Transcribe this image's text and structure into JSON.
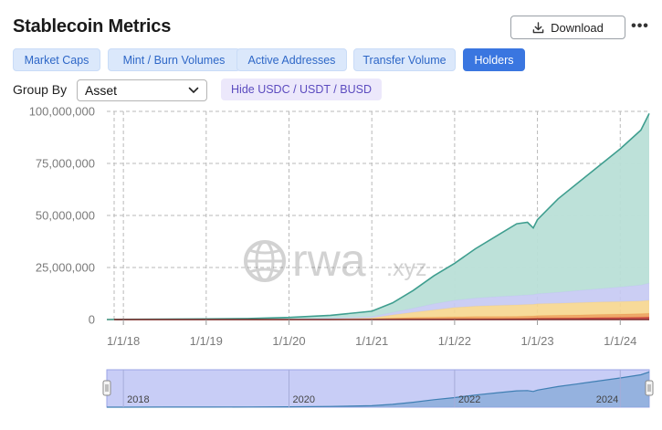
{
  "header": {
    "title": "Stablecoin Metrics",
    "download_label": "Download",
    "more_label": "•••"
  },
  "tabs": [
    {
      "label": "Market Caps",
      "active": false
    },
    {
      "label": "Mint / Burn Volumes",
      "active": false
    },
    {
      "label": "Active Addresses",
      "active": false
    },
    {
      "label": "Transfer Volume",
      "active": false
    },
    {
      "label": "Holders",
      "active": true
    }
  ],
  "controls": {
    "group_by_label": "Group By",
    "group_by_value": "Asset",
    "hide_button_label": "Hide USDC / USDT / BUSD"
  },
  "watermark": {
    "text_main": "rwa",
    "text_suffix": ".xyz"
  },
  "colors": {
    "teal": "#3f9e8f",
    "teal_fill": "#b9dfd7",
    "lavender": "#c5c9f3",
    "yellow": "#f6d68e",
    "orange": "#eca05a",
    "red": "#c9413b",
    "navigator_fill": "#c8cdf6",
    "navigator_line": "#3f7fb3"
  },
  "chart_data": {
    "type": "area",
    "title": "Holders",
    "stacked": true,
    "y_tick_labels": [
      "0",
      "25,000,000",
      "50,000,000",
      "75,000,000",
      "100,000,000"
    ],
    "ylim": [
      0,
      100000000
    ],
    "x_tick_labels": [
      "1/1/18",
      "1/1/19",
      "1/1/20",
      "1/1/21",
      "1/1/22",
      "1/1/23",
      "1/1/24"
    ],
    "xlim": [
      2017.8,
      2024.35
    ],
    "navigator_labels": [
      "2018",
      "2020",
      "2022",
      "2024"
    ],
    "x": [
      2017.8,
      2018.0,
      2018.5,
      2019.0,
      2019.5,
      2020.0,
      2020.5,
      2021.0,
      2021.25,
      2021.5,
      2021.75,
      2022.0,
      2022.25,
      2022.5,
      2022.75,
      2022.88,
      2022.95,
      2023.0,
      2023.25,
      2023.5,
      2023.75,
      2024.0,
      2024.25,
      2024.35
    ],
    "series": [
      {
        "name": "Dark red",
        "color": "#c9413b",
        "values": [
          0,
          0,
          0,
          0,
          0,
          0,
          0,
          100000,
          200000,
          250000,
          300000,
          350000,
          400000,
          450000,
          500000,
          550000,
          600000,
          650000,
          700000,
          800000,
          900000,
          1000000,
          1100000,
          1200000
        ]
      },
      {
        "name": "Orange",
        "color": "#eca05a",
        "values": [
          0,
          0,
          0,
          0,
          0,
          0,
          100000,
          300000,
          500000,
          700000,
          800000,
          900000,
          1000000,
          1000000,
          1000000,
          1100000,
          1100000,
          1200000,
          1300000,
          1400000,
          1500000,
          1600000,
          1700000,
          1800000
        ]
      },
      {
        "name": "Yellow",
        "color": "#f6d68e",
        "values": [
          0,
          0,
          0,
          0,
          0,
          100000,
          200000,
          400000,
          1500000,
          2500000,
          3500000,
          4500000,
          5000000,
          5300000,
          5500000,
          5600000,
          5600000,
          5700000,
          5800000,
          5900000,
          6000000,
          6000000,
          6100000,
          6200000
        ]
      },
      {
        "name": "Lavender",
        "color": "#c5c9f3",
        "values": [
          0,
          0,
          0,
          0,
          0,
          100000,
          300000,
          600000,
          1200000,
          2000000,
          3000000,
          3500000,
          3900000,
          4200000,
          4500000,
          4600000,
          4700000,
          4800000,
          5300000,
          5900000,
          6400000,
          7000000,
          7700000,
          8300000
        ]
      },
      {
        "name": "Teal",
        "color": "#3f9e8f",
        "values": [
          0,
          100000,
          200000,
          300000,
          500000,
          800000,
          1400000,
          2600000,
          4600000,
          8500000,
          13400000,
          17750000,
          23700000,
          29050000,
          34500000,
          34850000,
          32000000,
          35650000,
          44900000,
          52000000,
          59200000,
          66400000,
          74400000,
          81500000
        ]
      }
    ]
  }
}
